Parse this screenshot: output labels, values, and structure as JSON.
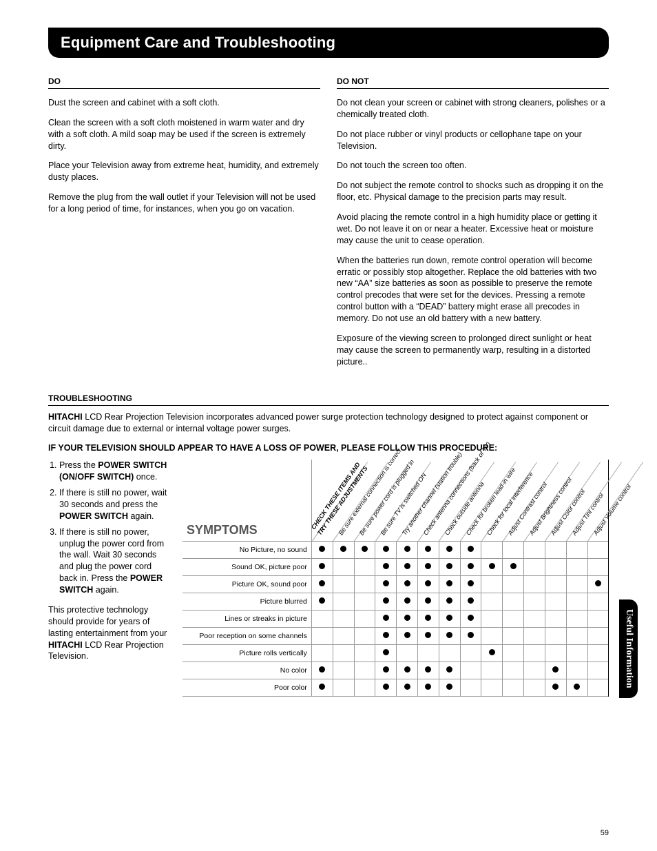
{
  "banner_title": "Equipment Care and Troubleshooting",
  "side_tab": "Useful Information",
  "page_number": "59",
  "do": {
    "label": "DO",
    "paras": [
      "Dust the screen and cabinet with a soft cloth.",
      "Clean the screen with a soft cloth moistened in warm water and dry with a soft cloth. A mild soap may be used if the screen is extremely dirty.",
      "Place your Television away from extreme heat, humidity, and extremely dusty places.",
      "Remove the plug from the wall outlet if your Television will not be used for a long period of time, for instances, when you go on vacation."
    ]
  },
  "donot": {
    "label": "DO NOT",
    "paras": [
      "Do not clean your screen or cabinet with strong cleaners, polishes or a chemically treated cloth.",
      "Do not place rubber or vinyl products or cellophane tape on your Television.",
      "Do not touch the screen too often.",
      "Do not subject the remote control to shocks such as dropping it on the floor, etc. Physical damage to the precision parts may result.",
      "Avoid placing the remote control in a high humidity place or getting it wet. Do not leave it on or near a heater. Excessive heat or moisture may cause the unit to cease operation.",
      "When the batteries run down, remote control operation will become erratic or possibly stop altogether. Replace the old batteries with two new “AA” size batteries as soon as possible to preserve the remote control precodes that were set for the devices. Pressing a remote control button with a “DEAD” battery might erase all precodes in memory. Do not use an old battery with a new battery.",
      "Exposure of the viewing screen to prolonged direct sunlight or heat may cause the screen to permanently warp, resulting in a distorted picture.."
    ]
  },
  "trouble": {
    "label": "TROUBLESHOOTING",
    "intro_bold": "HITACHI",
    "intro_rest": " LCD Rear Projection Television incorporates advanced power surge protection technology designed to protect against component or circuit damage due to external or internal voltage power surges.",
    "procedure_label": "IF YOUR TELEVISION SHOULD APPEAR TO HAVE A LOSS OF POWER, PLEASE FOLLOW THIS PROCEDURE:",
    "steps_html": [
      "Press the <b>POWER SWITCH (ON/OFF SWITCH)</b> once.",
      "If there is still no power, wait 30 seconds and press the <b>POWER SWITCH</b> again.",
      "If there is still no power, unplug the power cord from the wall. Wait 30 seconds and plug the power cord back in. Press the <b>POWER SWITCH</b> again."
    ],
    "closing_html": "This protective technology should provide for years of lasting entertainment from your <b>HITACHI</b> LCD Rear Projection Television."
  },
  "chart": {
    "symptoms_label": "SYMPTOMS",
    "columns": [
      {
        "label_top": "CHECK THESE ITEMS AND",
        "label_bot": "TRY THESE ADJUSTMENTS",
        "bold": true
      },
      {
        "label": "Be sure external connection is correct"
      },
      {
        "label": "Be sure power cord is plugged in"
      },
      {
        "label": "Be sure TV is switched ON"
      },
      {
        "label": "Try another channel (station trouble)"
      },
      {
        "label": "Check antenna connections (back of TV)"
      },
      {
        "label": "Check outside antenna"
      },
      {
        "label": "Check for broken lead-in wire"
      },
      {
        "label": "Check for local interference"
      },
      {
        "label": "Adjust Contrast control"
      },
      {
        "label": "Adjust Brightness control"
      },
      {
        "label": "Adjust Color control"
      },
      {
        "label": "Adjust Tint control"
      },
      {
        "label": "Adjust Volume control"
      }
    ],
    "rows": [
      {
        "label": "No Picture, no sound",
        "dots": [
          1,
          1,
          1,
          1,
          1,
          1,
          1,
          1,
          0,
          0,
          0,
          0,
          0,
          0
        ]
      },
      {
        "label": "Sound OK, picture poor",
        "dots": [
          1,
          0,
          0,
          1,
          1,
          1,
          1,
          1,
          1,
          1,
          0,
          0,
          0,
          0
        ]
      },
      {
        "label": "Picture OK, sound poor",
        "dots": [
          1,
          0,
          0,
          1,
          1,
          1,
          1,
          1,
          0,
          0,
          0,
          0,
          0,
          1
        ]
      },
      {
        "label": "Picture blurred",
        "dots": [
          1,
          0,
          0,
          1,
          1,
          1,
          1,
          1,
          0,
          0,
          0,
          0,
          0,
          0
        ]
      },
      {
        "label": "Lines or streaks in picture",
        "dots": [
          0,
          0,
          0,
          1,
          1,
          1,
          1,
          1,
          0,
          0,
          0,
          0,
          0,
          0
        ]
      },
      {
        "label": "Poor reception on some channels",
        "dots": [
          0,
          0,
          0,
          1,
          1,
          1,
          1,
          1,
          0,
          0,
          0,
          0,
          0,
          0
        ]
      },
      {
        "label": "Picture rolls vertically",
        "dots": [
          0,
          0,
          0,
          1,
          0,
          0,
          0,
          0,
          1,
          0,
          0,
          0,
          0,
          0
        ]
      },
      {
        "label": "No color",
        "dots": [
          1,
          0,
          0,
          1,
          1,
          1,
          1,
          0,
          0,
          0,
          0,
          1,
          0,
          0
        ]
      },
      {
        "label": "Poor color",
        "dots": [
          1,
          0,
          0,
          1,
          1,
          1,
          1,
          0,
          0,
          0,
          0,
          1,
          1,
          0
        ]
      }
    ]
  }
}
